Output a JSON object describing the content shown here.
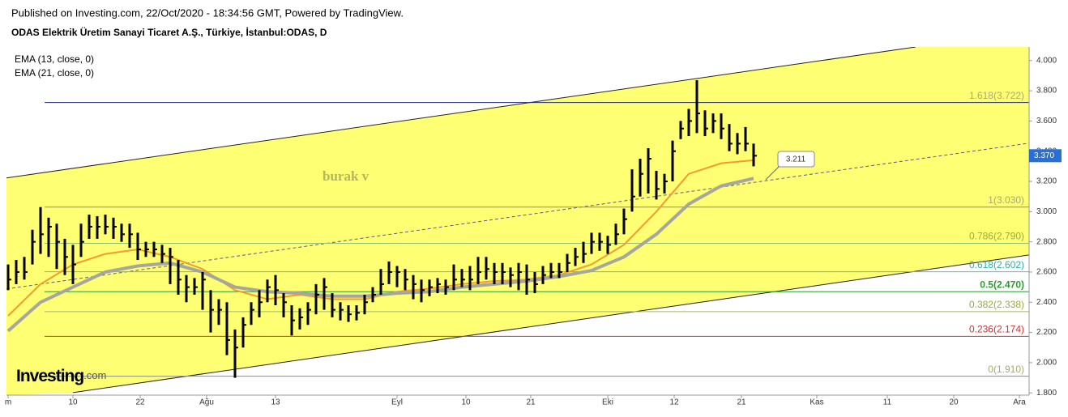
{
  "header": {
    "published": "Published on Investing.com, 22/Oct/2020 - 18:34:56 GMT, Powered by TradingView.",
    "symbol": "ODAS Elektrik Üretim Sanayi Ticaret A.Ş., Türkiye, İstanbul:ODAS, D",
    "indicators": [
      "EMA (13, close, 0)",
      "EMA (21, close, 0)"
    ],
    "watermark": "burak v",
    "logo": "Investing",
    "logo_suffix": ".com"
  },
  "chart_data": {
    "type": "ohlc",
    "color": "#000000",
    "background": "#ffff73",
    "xlim": [
      -0.2,
      126
    ],
    "ylim": [
      1.785,
      4.09
    ],
    "xticks": [
      {
        "value": 0,
        "label": "m"
      },
      {
        "value": 8,
        "label": "10"
      },
      {
        "value": 16.3,
        "label": "22"
      },
      {
        "value": 24.5,
        "label": "Ağu"
      },
      {
        "value": 33,
        "label": "13"
      },
      {
        "value": 48,
        "label": "Eyl"
      },
      {
        "value": 56.5,
        "label": "10"
      },
      {
        "value": 64.5,
        "label": "21"
      },
      {
        "value": 74,
        "label": "Eki"
      },
      {
        "value": 82.2,
        "label": "12"
      },
      {
        "value": 90.5,
        "label": "21"
      },
      {
        "value": 99.8,
        "label": "Kas"
      },
      {
        "value": 108.5,
        "label": "11"
      },
      {
        "value": 116.7,
        "label": "20"
      },
      {
        "value": 124.8,
        "label": "Ara"
      }
    ],
    "yticks": [
      {
        "value": 1.8,
        "label": "1.800"
      },
      {
        "value": 2,
        "label": "2.000"
      },
      {
        "value": 2.2,
        "label": "2.200"
      },
      {
        "value": 2.4,
        "label": "2.400"
      },
      {
        "value": 2.6,
        "label": "2.600"
      },
      {
        "value": 2.8,
        "label": "2.800"
      },
      {
        "value": 3,
        "label": "3.000"
      },
      {
        "value": 3.2,
        "label": "3.200"
      },
      {
        "value": 3.4,
        "label": "3.400"
      },
      {
        "value": 3.6,
        "label": "3.600"
      },
      {
        "value": 3.8,
        "label": "3.800"
      },
      {
        "value": 4,
        "label": "4.000"
      }
    ],
    "high": [
      2.65,
      2.68,
      2.7,
      2.88,
      3.03,
      2.96,
      2.92,
      2.82,
      2.78,
      2.92,
      2.98,
      2.97,
      2.98,
      2.96,
      2.92,
      2.92,
      2.86,
      2.8,
      2.8,
      2.78,
      2.76,
      2.68,
      2.58,
      2.56,
      2.6,
      2.48,
      2.42,
      2.4,
      2.22,
      2.3,
      2.4,
      2.48,
      2.55,
      2.58,
      2.46,
      2.38,
      2.36,
      2.4,
      2.52,
      2.56,
      2.46,
      2.4,
      2.38,
      2.38,
      2.45,
      2.5,
      2.62,
      2.67,
      2.64,
      2.62,
      2.58,
      2.55,
      2.55,
      2.56,
      2.55,
      2.65,
      2.62,
      2.64,
      2.7,
      2.7,
      2.66,
      2.66,
      2.63,
      2.66,
      2.65,
      2.6,
      2.64,
      2.66,
      2.66,
      2.72,
      2.76,
      2.8,
      2.86,
      2.86,
      2.84,
      2.92,
      3.02,
      3.28,
      3.35,
      3.42,
      3.27,
      3.25,
      3.47,
      3.6,
      3.68,
      3.87,
      3.67,
      3.65,
      3.65,
      3.58,
      3.52,
      3.56,
      3.45
    ],
    "low": [
      2.48,
      2.52,
      2.55,
      2.65,
      2.72,
      2.7,
      2.62,
      2.58,
      2.52,
      2.7,
      2.82,
      2.82,
      2.85,
      2.82,
      2.8,
      2.76,
      2.68,
      2.7,
      2.7,
      2.66,
      2.52,
      2.45,
      2.4,
      2.45,
      2.35,
      2.2,
      2.25,
      2.05,
      1.9,
      2.1,
      2.25,
      2.3,
      2.4,
      2.38,
      2.3,
      2.18,
      2.22,
      2.25,
      2.32,
      2.35,
      2.3,
      2.28,
      2.27,
      2.28,
      2.32,
      2.4,
      2.45,
      2.52,
      2.5,
      2.48,
      2.42,
      2.4,
      2.44,
      2.46,
      2.45,
      2.48,
      2.5,
      2.48,
      2.52,
      2.55,
      2.52,
      2.52,
      2.5,
      2.48,
      2.45,
      2.46,
      2.52,
      2.56,
      2.56,
      2.6,
      2.64,
      2.66,
      2.72,
      2.74,
      2.72,
      2.78,
      2.85,
      3.0,
      3.1,
      3.12,
      3.08,
      3.12,
      3.2,
      3.48,
      3.5,
      3.52,
      3.5,
      3.52,
      3.48,
      3.4,
      3.38,
      3.4,
      3.3
    ],
    "close": [
      2.55,
      2.6,
      2.6,
      2.8,
      2.85,
      2.9,
      2.8,
      2.7,
      2.65,
      2.8,
      2.9,
      2.9,
      2.9,
      2.9,
      2.85,
      2.85,
      2.75,
      2.75,
      2.75,
      2.72,
      2.7,
      2.55,
      2.5,
      2.5,
      2.55,
      2.35,
      2.35,
      2.15,
      2.1,
      2.25,
      2.35,
      2.4,
      2.5,
      2.48,
      2.4,
      2.28,
      2.3,
      2.35,
      2.45,
      2.5,
      2.35,
      2.35,
      2.32,
      2.33,
      2.4,
      2.45,
      2.52,
      2.6,
      2.6,
      2.55,
      2.52,
      2.48,
      2.5,
      2.52,
      2.5,
      2.55,
      2.55,
      2.55,
      2.6,
      2.62,
      2.6,
      2.6,
      2.58,
      2.6,
      2.55,
      2.52,
      2.58,
      2.6,
      2.6,
      2.66,
      2.7,
      2.72,
      2.8,
      2.8,
      2.78,
      2.85,
      2.95,
      3.1,
      3.25,
      3.35,
      3.15,
      3.2,
      3.4,
      3.55,
      3.6,
      3.65,
      3.55,
      3.6,
      3.55,
      3.45,
      3.45,
      3.45,
      3.37
    ],
    "series": [
      {
        "name": "EMA (13, close, 0)",
        "color": "#f59a2c",
        "width": 2,
        "x": [
          0,
          4,
          8,
          12,
          16,
          20,
          24,
          28,
          32,
          36,
          40,
          44,
          48,
          52,
          56,
          60,
          64,
          68,
          72,
          76,
          80,
          84,
          88,
          92
        ],
        "values": [
          2.31,
          2.52,
          2.65,
          2.72,
          2.75,
          2.7,
          2.62,
          2.48,
          2.42,
          2.45,
          2.42,
          2.42,
          2.47,
          2.49,
          2.52,
          2.54,
          2.55,
          2.58,
          2.65,
          2.78,
          3.0,
          3.25,
          3.32,
          3.34
        ]
      },
      {
        "name": "EMA (21, close, 0)",
        "color": "#a6a6a0",
        "width": 4,
        "x": [
          0,
          4,
          8,
          12,
          16,
          20,
          24,
          28,
          32,
          36,
          40,
          44,
          48,
          52,
          56,
          60,
          64,
          68,
          72,
          76,
          80,
          84,
          88,
          92
        ],
        "values": [
          2.21,
          2.4,
          2.5,
          2.6,
          2.64,
          2.66,
          2.6,
          2.5,
          2.47,
          2.46,
          2.44,
          2.44,
          2.46,
          2.47,
          2.5,
          2.52,
          2.54,
          2.57,
          2.61,
          2.7,
          2.85,
          3.05,
          3.17,
          3.22
        ]
      }
    ],
    "channel": {
      "upper": [
        [
          -0.2,
          3.223
        ],
        [
          112,
          4.09
        ]
      ],
      "lower": [
        [
          8,
          1.802
        ],
        [
          126,
          2.713
        ]
      ],
      "middle": [
        [
          -0.2,
          2.488
        ],
        [
          126,
          3.453
        ]
      ]
    },
    "fib": {
      "start": 4.5,
      "levels": [
        {
          "label": "1.618(3.722)",
          "value": 3.722,
          "color": "#a8a878",
          "line": "#1f2a80"
        },
        {
          "label": "1(3.030)",
          "value": 3.03,
          "color": "#a8a878",
          "line": "#8c8c8c"
        },
        {
          "label": "0.786(2.790)",
          "value": 2.79,
          "color": "#9aaa3c",
          "line": "#8fbf6a"
        },
        {
          "label": "0.618(2.602)",
          "value": 2.602,
          "color": "#2ab0a0",
          "line": "#56c0b0"
        },
        {
          "label": "0.5(2.470)",
          "value": 2.47,
          "color": "#2e9a2e",
          "line": "#2e9a2e"
        },
        {
          "label": "0.382(2.338)",
          "value": 2.338,
          "color": "#9aaa3c",
          "line": "#a8b86a"
        },
        {
          "label": "0.236(2.174)",
          "value": 2.174,
          "color": "#d03030",
          "line": "#d03030"
        },
        {
          "label": "0(1.910)",
          "value": 1.91,
          "color": "#a8a878",
          "line": "#8c8c8c"
        }
      ]
    },
    "last_price": {
      "value": 3.37,
      "label": "3.370",
      "color": "#2a6fd6"
    },
    "callout": {
      "value": 3.211,
      "x": 93.5
    }
  }
}
